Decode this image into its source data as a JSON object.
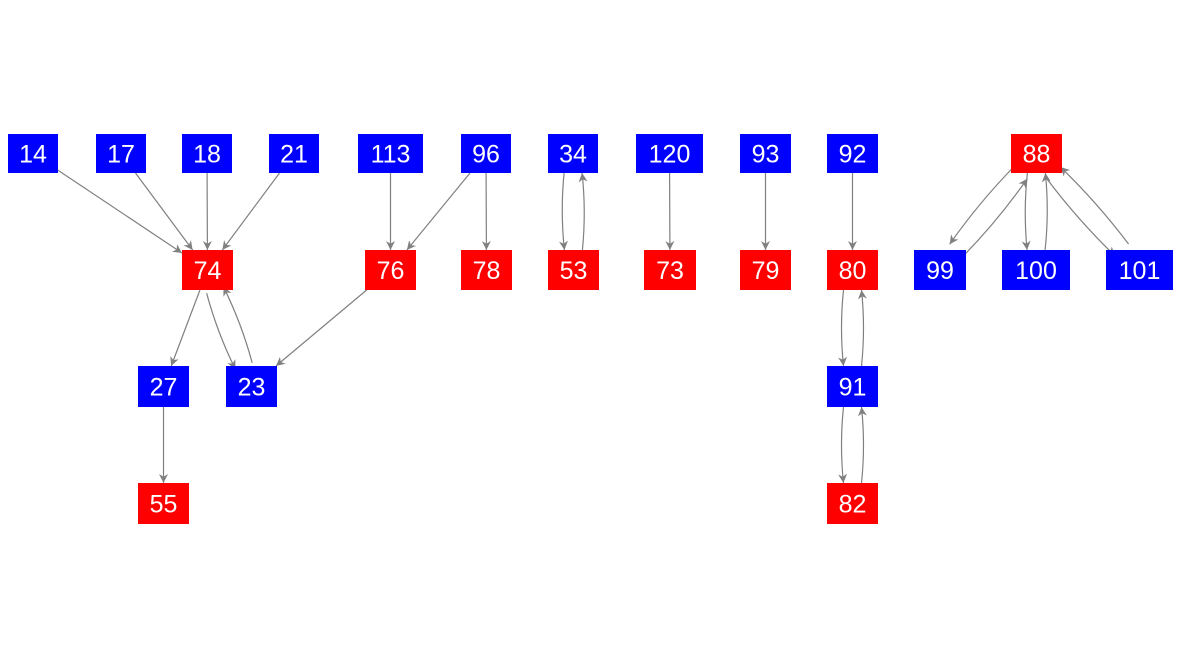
{
  "colors": {
    "blue_node": "#0000ff",
    "red_node": "#ff0000",
    "edge": "#808080",
    "label": "#ffffff"
  },
  "nodes": [
    {
      "id": "14",
      "color": "blue"
    },
    {
      "id": "17",
      "color": "blue"
    },
    {
      "id": "18",
      "color": "blue"
    },
    {
      "id": "21",
      "color": "blue"
    },
    {
      "id": "113",
      "color": "blue"
    },
    {
      "id": "96",
      "color": "blue"
    },
    {
      "id": "34",
      "color": "blue"
    },
    {
      "id": "120",
      "color": "blue"
    },
    {
      "id": "93",
      "color": "blue"
    },
    {
      "id": "92",
      "color": "blue"
    },
    {
      "id": "88",
      "color": "red"
    },
    {
      "id": "74",
      "color": "red"
    },
    {
      "id": "76",
      "color": "red"
    },
    {
      "id": "78",
      "color": "red"
    },
    {
      "id": "53",
      "color": "red"
    },
    {
      "id": "73",
      "color": "red"
    },
    {
      "id": "79",
      "color": "red"
    },
    {
      "id": "80",
      "color": "red"
    },
    {
      "id": "99",
      "color": "blue"
    },
    {
      "id": "100",
      "color": "blue"
    },
    {
      "id": "101",
      "color": "blue"
    },
    {
      "id": "27",
      "color": "blue"
    },
    {
      "id": "23",
      "color": "blue"
    },
    {
      "id": "91",
      "color": "blue"
    },
    {
      "id": "55",
      "color": "red"
    },
    {
      "id": "82",
      "color": "red"
    }
  ],
  "edges": [
    [
      "14",
      "74"
    ],
    [
      "17",
      "74"
    ],
    [
      "18",
      "74"
    ],
    [
      "21",
      "74"
    ],
    [
      "74",
      "27"
    ],
    [
      "74",
      "23"
    ],
    [
      "23",
      "74"
    ],
    [
      "76",
      "23"
    ],
    [
      "113",
      "76"
    ],
    [
      "96",
      "76"
    ],
    [
      "96",
      "78"
    ],
    [
      "34",
      "53"
    ],
    [
      "53",
      "34"
    ],
    [
      "120",
      "73"
    ],
    [
      "93",
      "79"
    ],
    [
      "92",
      "80"
    ],
    [
      "80",
      "91"
    ],
    [
      "91",
      "80"
    ],
    [
      "91",
      "82"
    ],
    [
      "82",
      "91"
    ],
    [
      "88",
      "99"
    ],
    [
      "99",
      "88"
    ],
    [
      "88",
      "100"
    ],
    [
      "100",
      "88"
    ],
    [
      "88",
      "101"
    ],
    [
      "101",
      "88"
    ],
    [
      "27",
      "55"
    ]
  ]
}
